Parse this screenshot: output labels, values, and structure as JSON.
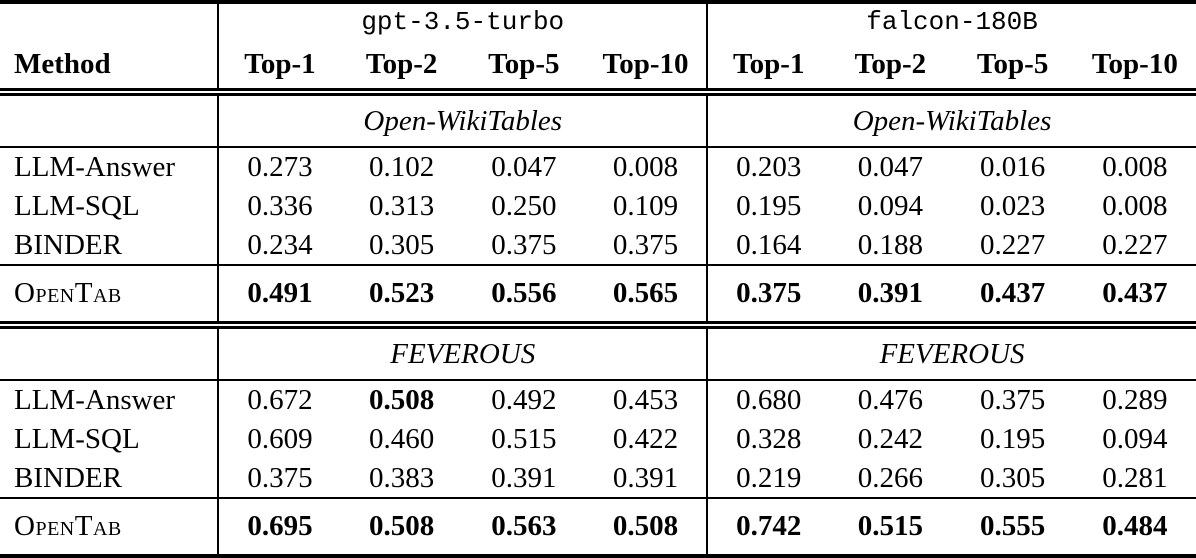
{
  "table": {
    "corner_label": "Method",
    "model_groups": [
      {
        "name": "gpt-3.5-turbo",
        "columns": [
          "Top-1",
          "Top-2",
          "Top-5",
          "Top-10"
        ]
      },
      {
        "name": "falcon-180B",
        "columns": [
          "Top-1",
          "Top-2",
          "Top-5",
          "Top-10"
        ]
      }
    ],
    "sections": [
      {
        "dataset": "Open-WikiTables",
        "rows": [
          {
            "method": "LLM-Answer",
            "values": [
              "0.273",
              "0.102",
              "0.047",
              "0.008",
              "0.203",
              "0.047",
              "0.016",
              "0.008"
            ],
            "bold": [
              false,
              false,
              false,
              false,
              false,
              false,
              false,
              false
            ]
          },
          {
            "method": "LLM-SQL",
            "values": [
              "0.336",
              "0.313",
              "0.250",
              "0.109",
              "0.195",
              "0.094",
              "0.023",
              "0.008"
            ],
            "bold": [
              false,
              false,
              false,
              false,
              false,
              false,
              false,
              false
            ]
          },
          {
            "method": "BINDER",
            "values": [
              "0.234",
              "0.305",
              "0.375",
              "0.375",
              "0.164",
              "0.188",
              "0.227",
              "0.227"
            ],
            "bold": [
              false,
              false,
              false,
              false,
              false,
              false,
              false,
              false
            ]
          }
        ],
        "highlight_row": {
          "method": "OpenTab",
          "values": [
            "0.491",
            "0.523",
            "0.556",
            "0.565",
            "0.375",
            "0.391",
            "0.437",
            "0.437"
          ],
          "bold": [
            true,
            true,
            true,
            true,
            true,
            true,
            true,
            true
          ]
        }
      },
      {
        "dataset": "FEVEROUS",
        "rows": [
          {
            "method": "LLM-Answer",
            "values": [
              "0.672",
              "0.508",
              "0.492",
              "0.453",
              "0.680",
              "0.476",
              "0.375",
              "0.289"
            ],
            "bold": [
              false,
              true,
              false,
              false,
              false,
              false,
              false,
              false
            ]
          },
          {
            "method": "LLM-SQL",
            "values": [
              "0.609",
              "0.460",
              "0.515",
              "0.422",
              "0.328",
              "0.242",
              "0.195",
              "0.094"
            ],
            "bold": [
              false,
              false,
              false,
              false,
              false,
              false,
              false,
              false
            ]
          },
          {
            "method": "BINDER",
            "values": [
              "0.375",
              "0.383",
              "0.391",
              "0.391",
              "0.219",
              "0.266",
              "0.305",
              "0.281"
            ],
            "bold": [
              false,
              false,
              false,
              false,
              false,
              false,
              false,
              false
            ]
          }
        ],
        "highlight_row": {
          "method": "OpenTab",
          "values": [
            "0.695",
            "0.508",
            "0.563",
            "0.508",
            "0.742",
            "0.515",
            "0.555",
            "0.484"
          ],
          "bold": [
            true,
            true,
            true,
            true,
            true,
            true,
            true,
            true
          ]
        }
      }
    ],
    "colors": {
      "text": "#000000",
      "background": "#ffffff",
      "rule": "#000000"
    }
  }
}
